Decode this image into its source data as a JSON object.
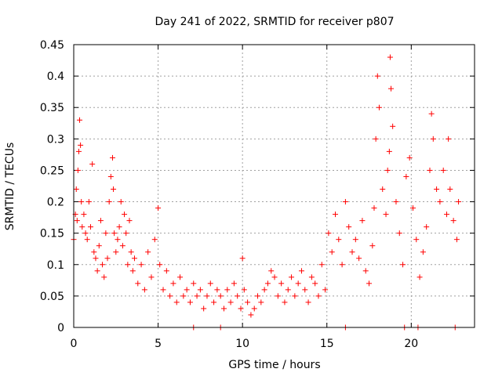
{
  "chart_data": {
    "type": "scatter",
    "title": "Day 241 of 2022, SRMTID for receiver p807",
    "xlabel": "GPS time / hours",
    "ylabel": "SRMTID / TECUs",
    "xlim": [
      0,
      23.75
    ],
    "ylim": [
      0,
      0.45
    ],
    "xticks": [
      0,
      5,
      10,
      15,
      20
    ],
    "yticks": [
      0,
      0.05,
      0.1,
      0.15,
      0.2,
      0.25,
      0.3,
      0.35,
      0.4,
      0.45
    ],
    "grid": true,
    "marker": "+",
    "color": "#ff0000",
    "series": [
      {
        "name": "SRMTID p807",
        "x": [
          0.0,
          0.1,
          0.15,
          0.2,
          0.25,
          0.3,
          0.35,
          0.4,
          0.45,
          0.5,
          0.6,
          0.7,
          0.8,
          0.9,
          1.0,
          1.1,
          1.2,
          1.3,
          1.4,
          1.5,
          1.6,
          1.7,
          1.8,
          1.9,
          2.0,
          2.1,
          2.2,
          2.3,
          2.35,
          2.4,
          2.5,
          2.6,
          2.7,
          2.8,
          2.9,
          3.0,
          3.1,
          3.2,
          3.3,
          3.4,
          3.5,
          3.6,
          3.8,
          4.0,
          4.2,
          4.4,
          4.6,
          4.8,
          5.0,
          5.1,
          5.3,
          5.5,
          5.7,
          5.9,
          6.1,
          6.3,
          6.5,
          6.7,
          6.9,
          7.1,
          7.3,
          7.5,
          7.7,
          7.9,
          8.1,
          8.3,
          8.5,
          8.7,
          8.9,
          9.1,
          9.3,
          9.5,
          9.7,
          9.9,
          10.0,
          10.1,
          10.3,
          10.5,
          10.7,
          10.9,
          11.1,
          11.3,
          11.5,
          11.7,
          11.9,
          12.1,
          12.3,
          12.5,
          12.7,
          12.9,
          13.1,
          13.3,
          13.5,
          13.7,
          13.9,
          14.1,
          14.3,
          14.5,
          14.7,
          14.9,
          15.1,
          15.3,
          15.5,
          15.7,
          15.9,
          16.1,
          16.3,
          16.5,
          16.7,
          16.9,
          17.1,
          17.3,
          17.5,
          17.7,
          17.8,
          17.9,
          18.0,
          18.1,
          18.3,
          18.5,
          18.6,
          18.7,
          18.75,
          18.8,
          18.9,
          19.1,
          19.3,
          19.5,
          19.7,
          19.9,
          20.1,
          20.3,
          20.5,
          20.7,
          20.9,
          21.1,
          21.2,
          21.3,
          21.5,
          21.7,
          21.9,
          22.1,
          22.2,
          22.3,
          22.5,
          22.7,
          22.8,
          7.1,
          8.7,
          16.1,
          19.6,
          20.4,
          22.6
        ],
        "y": [
          0.14,
          0.18,
          0.22,
          0.17,
          0.25,
          0.28,
          0.33,
          0.29,
          0.2,
          0.16,
          0.18,
          0.15,
          0.14,
          0.2,
          0.16,
          0.26,
          0.12,
          0.11,
          0.09,
          0.13,
          0.17,
          0.1,
          0.08,
          0.15,
          0.11,
          0.2,
          0.24,
          0.27,
          0.22,
          0.15,
          0.12,
          0.14,
          0.16,
          0.2,
          0.13,
          0.18,
          0.15,
          0.1,
          0.17,
          0.12,
          0.09,
          0.11,
          0.07,
          0.1,
          0.06,
          0.12,
          0.08,
          0.14,
          0.19,
          0.1,
          0.06,
          0.09,
          0.05,
          0.07,
          0.04,
          0.08,
          0.05,
          0.06,
          0.04,
          0.07,
          0.05,
          0.06,
          0.03,
          0.05,
          0.07,
          0.04,
          0.06,
          0.05,
          0.03,
          0.06,
          0.04,
          0.07,
          0.05,
          0.03,
          0.11,
          0.06,
          0.04,
          0.02,
          0.03,
          0.05,
          0.04,
          0.06,
          0.07,
          0.09,
          0.08,
          0.05,
          0.07,
          0.04,
          0.06,
          0.08,
          0.05,
          0.07,
          0.09,
          0.06,
          0.04,
          0.08,
          0.07,
          0.05,
          0.1,
          0.06,
          0.15,
          0.12,
          0.18,
          0.14,
          0.1,
          0.2,
          0.16,
          0.12,
          0.14,
          0.11,
          0.17,
          0.09,
          0.07,
          0.13,
          0.19,
          0.3,
          0.4,
          0.35,
          0.22,
          0.18,
          0.25,
          0.28,
          0.43,
          0.38,
          0.32,
          0.2,
          0.15,
          0.1,
          0.24,
          0.27,
          0.19,
          0.14,
          0.08,
          0.12,
          0.16,
          0.25,
          0.34,
          0.3,
          0.22,
          0.2,
          0.25,
          0.18,
          0.3,
          0.22,
          0.17,
          0.14,
          0.2,
          0.0,
          0.0,
          0.0,
          0.0,
          0.0,
          0.0
        ]
      }
    ]
  }
}
